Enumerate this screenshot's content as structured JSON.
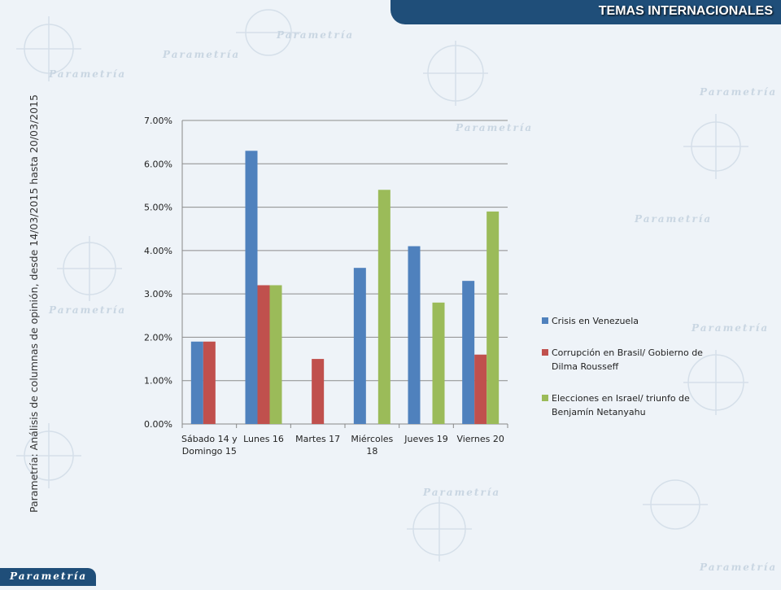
{
  "header": {
    "title": "TEMAS INTERNACIONALES"
  },
  "side_label": "Parametría: Análisis de columnas de opinión, desde 14/03/2015 hasta 20/03/2015",
  "footer": {
    "logo_text": "Parametría"
  },
  "background": {
    "watermark": "Parametría"
  },
  "colors": {
    "header": "#1f4e79",
    "series": [
      "#4f81bd",
      "#c0504d",
      "#9bbb59"
    ]
  },
  "chart_data": {
    "type": "bar",
    "categories": [
      [
        "Sábado 14 y",
        "Domingo 15"
      ],
      [
        "Lunes 16"
      ],
      [
        "Martes 17"
      ],
      [
        "Miércoles",
        "18"
      ],
      [
        "Jueves 19"
      ],
      [
        "Viernes 20"
      ]
    ],
    "series": [
      {
        "name": "Crisis en Venezuela",
        "values": [
          1.9,
          6.3,
          0,
          3.6,
          4.1,
          3.3
        ]
      },
      {
        "name": "Corrupción en Brasil/ Gobierno de Dilma Rousseff",
        "values": [
          1.9,
          3.2,
          1.5,
          0,
          0,
          1.6
        ]
      },
      {
        "name": "Elecciones en Israel/ triunfo de Benjamín Netanyahu",
        "values": [
          0,
          3.2,
          0,
          5.4,
          2.8,
          4.9
        ]
      }
    ],
    "ylim": [
      0,
      7
    ],
    "yticks": [
      "0.00%",
      "1.00%",
      "2.00%",
      "3.00%",
      "4.00%",
      "5.00%",
      "6.00%",
      "7.00%"
    ],
    "grid": true,
    "legend_position": "right"
  }
}
